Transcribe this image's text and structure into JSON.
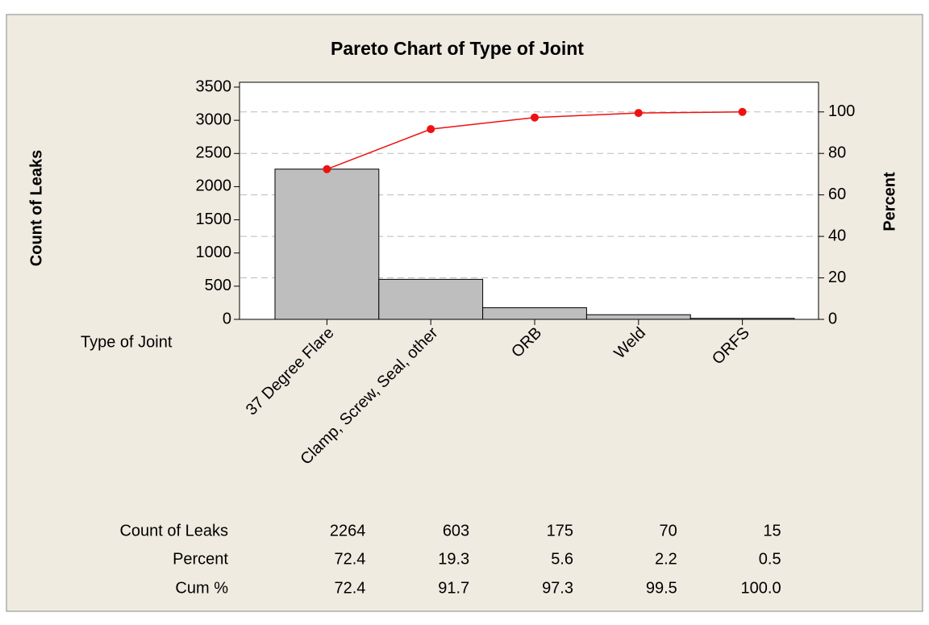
{
  "chart_data": {
    "type": "pareto",
    "title": "Pareto Chart of Type of Joint",
    "xlabel": "Type of Joint",
    "ylabel": "Count of Leaks",
    "y2label": "Percent",
    "categories": [
      "37 Degree Flare",
      "Clamp, Screw, Seal, other",
      "ORB",
      "Weld",
      "ORFS"
    ],
    "series": [
      {
        "name": "Count of Leaks",
        "color": "#bebebe",
        "values": [
          2264,
          603,
          175,
          70,
          15
        ]
      },
      {
        "name": "Percent",
        "values": [
          72.4,
          19.3,
          5.6,
          2.2,
          0.5
        ]
      },
      {
        "name": "Cum %",
        "color": "#ee1111",
        "axis": "y2",
        "values": [
          72.4,
          91.7,
          97.3,
          99.5,
          100
        ],
        "value_labels": [
          "72.4",
          "91.7",
          "97.3",
          "99.5",
          "100.0"
        ]
      }
    ],
    "ylim": [
      0,
      3573
    ],
    "yticks": [
      0,
      500,
      1000,
      1500,
      2000,
      2500,
      3000,
      3500
    ],
    "y2lim": [
      0,
      114.3
    ],
    "y2ticks": [
      0,
      20,
      40,
      60,
      80,
      100
    ],
    "grid": true
  }
}
